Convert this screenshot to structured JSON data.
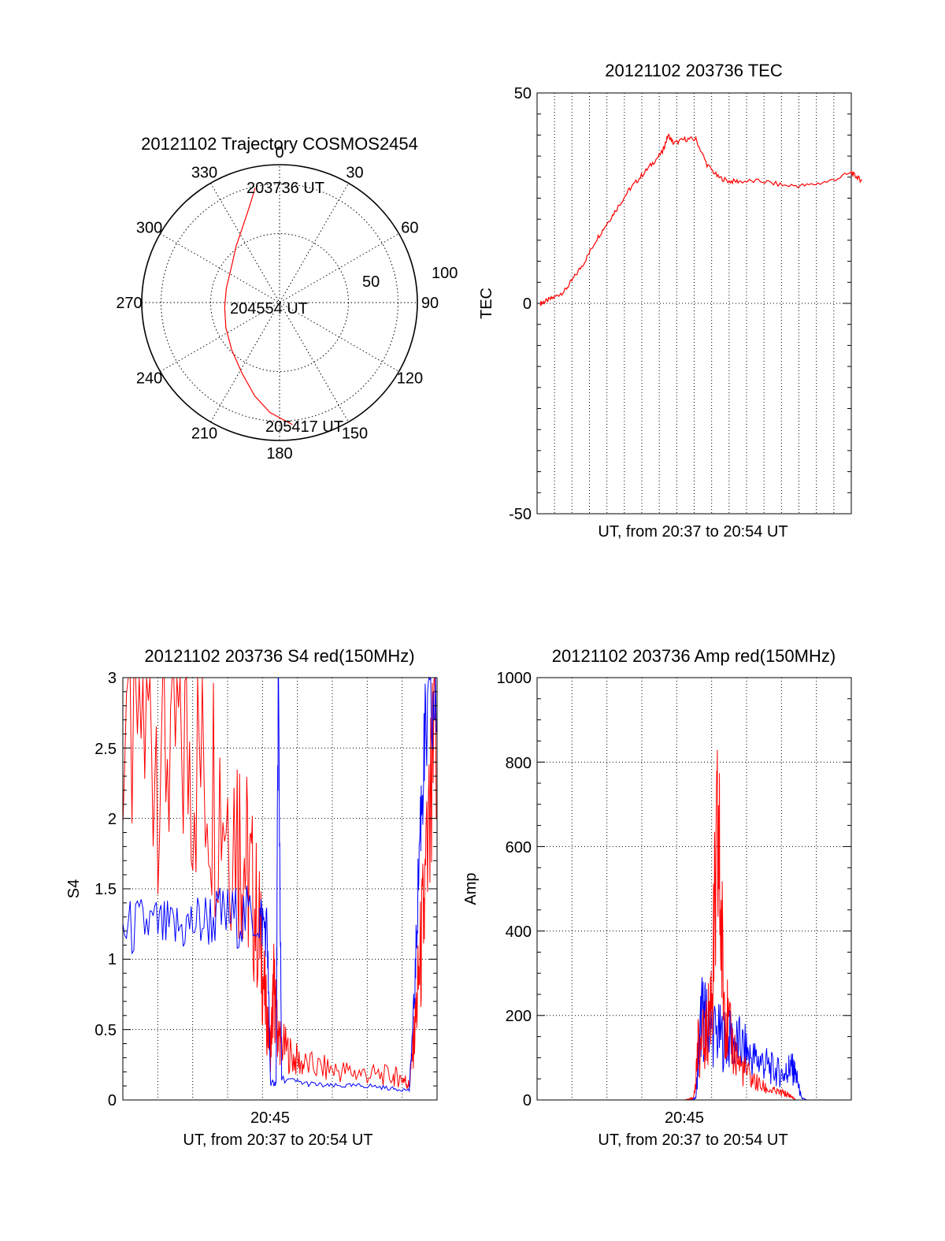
{
  "colors": {
    "red": "#ff0000",
    "blue": "#0000ff",
    "axis": "#000000",
    "grid": "#000000",
    "background": "#ffffff"
  },
  "chart_data": [
    {
      "id": "trajectory",
      "type": "scatter",
      "title": "20121102 Trajectory COSMOS2454",
      "coordinate_system": "polar",
      "azimuth_labels": [
        "0",
        "30",
        "60",
        "90",
        "120",
        "150",
        "180",
        "210",
        "240",
        "270",
        "300",
        "330"
      ],
      "radial_labels": [
        "50",
        "100"
      ],
      "rlim": [
        0,
        100
      ],
      "grid": true,
      "annotations": [
        {
          "text": "203736 UT",
          "az": -12,
          "r": 85
        },
        {
          "text": "204554 UT",
          "az": 0,
          "r": 0
        },
        {
          "text": "205417 UT",
          "az": 186,
          "r": 89
        }
      ],
      "series": [
        {
          "color": "red",
          "points": [
            [
              -12,
              85
            ],
            [
              -18,
              72
            ],
            [
              -27,
              60
            ],
            [
              -37,
              52
            ],
            [
              -55,
              43
            ],
            [
              -75,
              40
            ],
            [
              -95,
              40
            ],
            [
              -115,
              43
            ],
            [
              -135,
              49
            ],
            [
              -152,
              58
            ],
            [
              -165,
              70
            ],
            [
              -175,
              80
            ],
            [
              -186,
              89
            ]
          ]
        }
      ]
    },
    {
      "id": "tec",
      "type": "line",
      "title": "20121102 203736 TEC",
      "xlabel": "UT, from 20:37 to 20:54 UT",
      "ylabel": "TEC",
      "ylim": [
        -50,
        50
      ],
      "yticks": [
        "50",
        "0",
        "-50"
      ],
      "grid": true,
      "series": [
        {
          "color": "red",
          "x": [
            20.62,
            20.625,
            20.633,
            20.642,
            20.65,
            20.66,
            20.67,
            20.68,
            20.69,
            20.7,
            20.71,
            20.72,
            20.73,
            20.735,
            20.74,
            20.75,
            20.76,
            20.77,
            20.78,
            20.79,
            20.8,
            20.82,
            20.84,
            20.86,
            20.88,
            20.9,
            20.905,
            20.91
          ],
          "y": [
            0,
            0.5,
            1.5,
            3,
            6,
            10,
            15,
            19,
            23,
            27,
            30,
            33,
            36,
            40,
            38,
            39,
            39,
            33,
            30,
            29,
            29,
            29,
            28,
            28,
            29,
            31,
            30,
            29
          ]
        }
      ]
    },
    {
      "id": "s4",
      "type": "line",
      "title": "20121102 203736 S4 red(150MHz)",
      "xlabel": "UT, from 20:37 to 20:54 UT",
      "ylabel": "S4",
      "xtick_label": "20:45",
      "ylim": [
        0,
        3
      ],
      "yticks": [
        "0",
        "0.5",
        "1",
        "1.5",
        "2",
        "2.5",
        "3"
      ],
      "grid": true,
      "series": [
        {
          "color": "red",
          "x": [
            20.617,
            20.64,
            20.66,
            20.68,
            20.7,
            20.72,
            20.73,
            20.74,
            20.745,
            20.75,
            20.753,
            20.756,
            20.76,
            20.77,
            20.78,
            20.8,
            20.82,
            20.84,
            20.86,
            20.87,
            20.875,
            20.88,
            20.885,
            20.89,
            20.9
          ],
          "y": [
            2.8,
            2.7,
            2.6,
            2.5,
            2.3,
            2.0,
            1.6,
            1.2,
            0.7,
            0.35,
            0.8,
            0.5,
            0.4,
            0.3,
            0.25,
            0.22,
            0.2,
            0.18,
            0.17,
            0.15,
            0.1,
            0.5,
            1.0,
            1.5,
            2.5
          ]
        },
        {
          "color": "blue",
          "x": [
            20.617,
            20.64,
            20.66,
            20.68,
            20.7,
            20.72,
            20.74,
            20.747,
            20.75,
            20.755,
            20.757,
            20.76,
            20.78,
            20.8,
            20.82,
            20.84,
            20.86,
            20.875,
            20.88,
            20.885,
            20.89,
            20.9
          ],
          "y": [
            1.2,
            1.25,
            1.2,
            1.25,
            1.3,
            1.3,
            1.3,
            1.2,
            0.12,
            0.12,
            3.0,
            0.15,
            0.12,
            0.1,
            0.1,
            0.1,
            0.08,
            0.07,
            0.8,
            2.0,
            2.6,
            2.8
          ]
        }
      ]
    },
    {
      "id": "amp",
      "type": "line",
      "title": "20121102 203736 Amp red(150MHz)",
      "xlabel": "UT, from 20:37 to 20:54 UT",
      "ylabel": "Amp",
      "xtick_label": "20:45",
      "ylim": [
        0,
        1000
      ],
      "yticks": [
        "0",
        "200",
        "400",
        "600",
        "800",
        "1000"
      ],
      "grid": true,
      "series": [
        {
          "color": "red",
          "x": [
            20.62,
            20.75,
            20.758,
            20.762,
            20.77,
            20.775,
            20.78,
            20.785,
            20.79,
            20.8,
            20.81,
            20.82,
            20.83,
            20.84,
            20.845,
            20.85
          ],
          "y": [
            0,
            0,
            5,
            120,
            150,
            280,
            600,
            260,
            150,
            80,
            50,
            30,
            20,
            15,
            10,
            0
          ]
        },
        {
          "color": "blue",
          "x": [
            20.62,
            20.755,
            20.76,
            20.765,
            20.77,
            20.78,
            20.79,
            20.8,
            20.81,
            20.82,
            20.83,
            20.84,
            20.845,
            20.85,
            20.855,
            20.86,
            20.9
          ],
          "y": [
            0,
            0,
            5,
            200,
            180,
            150,
            140,
            130,
            100,
            90,
            70,
            60,
            80,
            60,
            5,
            0,
            0
          ]
        }
      ]
    }
  ]
}
